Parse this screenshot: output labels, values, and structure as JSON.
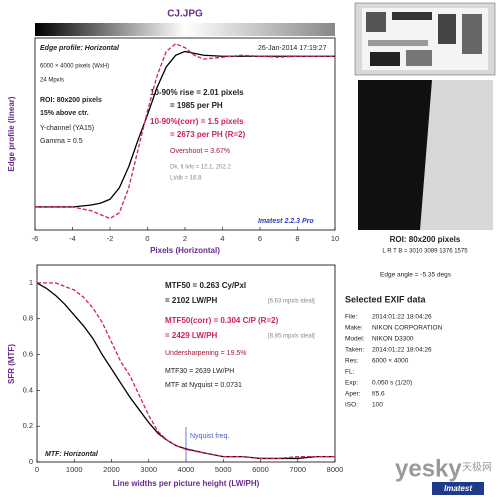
{
  "header": {
    "title": "CJ.JPG"
  },
  "chart_data": [
    {
      "type": "line",
      "title": "Edge profile: Horizontal",
      "xlabel": "Pixels (Horizontal)",
      "ylabel": "Edge profile (linear)",
      "xlim": [
        -6,
        10
      ],
      "xticks": [
        -6,
        -4,
        -2,
        0,
        2,
        4,
        6,
        8,
        10
      ],
      "ylim": [
        0,
        1
      ],
      "x": [
        -6,
        -5,
        -4,
        -3,
        -2.5,
        -2,
        -1.5,
        -1,
        -0.5,
        0,
        0.5,
        1,
        1.5,
        2,
        2.5,
        3,
        4,
        5,
        6,
        7,
        8,
        9,
        10
      ],
      "series": [
        {
          "color": "#000000",
          "style": "solid",
          "values": [
            0.12,
            0.12,
            0.12,
            0.13,
            0.14,
            0.16,
            0.22,
            0.33,
            0.47,
            0.6,
            0.74,
            0.85,
            0.91,
            0.93,
            0.92,
            0.91,
            0.905,
            0.905,
            0.905,
            0.905,
            0.905,
            0.905,
            0.905
          ]
        },
        {
          "color": "#d0215f",
          "style": "dashed",
          "values": [
            0.12,
            0.12,
            0.12,
            0.1,
            0.08,
            0.06,
            0.09,
            0.22,
            0.42,
            0.62,
            0.8,
            0.93,
            0.97,
            0.95,
            0.91,
            0.89,
            0.9,
            0.91,
            0.905,
            0.9,
            0.905,
            0.905,
            0.905
          ]
        }
      ],
      "annotations": [
        "26-Jan-2014 17:19:27",
        "6000 × 4000 pixels (WxH)",
        "24 Mpxls",
        "ROI: 80x200 pixels",
        "15% above ctr.",
        "Y-channel (YA15)",
        "Gamma = 0.5",
        "10-90% rise = 2.01 pixels",
        "= 1985 per PH",
        "10-90%(corr) = 1.5 pixels",
        "= 2673 per PH  (R=2)",
        "Overshoot = 3.67%",
        "Dk, lt lvls = 12.1, 202.2",
        "Lt/dk = 16.8",
        "Imatest 2.2.3 Pro"
      ]
    },
    {
      "type": "line",
      "title": "MTF: Horizontal",
      "xlabel": "Line widths per picture height (LW/PH)",
      "ylabel": "SFR (MTF)",
      "xlim": [
        0,
        8000
      ],
      "xticks": [
        0,
        1000,
        2000,
        3000,
        4000,
        5000,
        6000,
        7000,
        8000
      ],
      "ylim": [
        0,
        1.1
      ],
      "yticks": [
        0,
        0.2,
        0.4,
        0.6,
        0.8,
        1
      ],
      "x": [
        0,
        250,
        500,
        750,
        1000,
        1250,
        1500,
        1750,
        2000,
        2250,
        2500,
        2750,
        3000,
        3250,
        3500,
        3750,
        4000,
        4500,
        5000,
        5500,
        6000,
        6500,
        7000,
        7500,
        8000
      ],
      "series": [
        {
          "color": "#000000",
          "style": "solid",
          "values": [
            1,
            0.97,
            0.93,
            0.88,
            0.82,
            0.76,
            0.69,
            0.6,
            0.52,
            0.44,
            0.36,
            0.29,
            0.22,
            0.16,
            0.12,
            0.09,
            0.073,
            0.05,
            0.03,
            0.03,
            0.02,
            0.02,
            0.02,
            0.03,
            0.03
          ]
        },
        {
          "color": "#d0215f",
          "style": "dashed",
          "values": [
            1,
            1,
            1,
            0.98,
            0.96,
            0.92,
            0.86,
            0.78,
            0.67,
            0.56,
            0.48,
            0.37,
            0.26,
            0.17,
            0.12,
            0.09,
            0.07,
            0.05,
            0.03,
            0.03,
            0.02,
            0.02,
            0.03,
            0.03,
            0.03
          ]
        }
      ],
      "nyquist": {
        "label": "Nyquist freq.",
        "x": 4000,
        "color": "#4a5bd0"
      },
      "annotations": [
        "MTF50 = 0.263 Cy/Pxl",
        "= 2102 LW/PH",
        "[6.63 mpxls ideal]",
        "MTF50(corr) = 0.304 C/P  (R=2)",
        "= 2429 LW/PH",
        "[8.85 mpxls ideal]",
        "Undersharpening = 19.5%",
        "MTF30 = 2639 LW/PH",
        "MTF at Nyquist = 0.0731"
      ]
    }
  ],
  "roi_panel": {
    "caption": "ROI: 80x200 pixels",
    "coords": "L R T B = 3010 3089 1376 1575",
    "edge_angle": "Edge angle = -5.35 degs"
  },
  "exif": {
    "title": "Selected EXIF data",
    "rows": [
      [
        "File:",
        "2014:01:22 18:04:26"
      ],
      [
        "Make:",
        "NIKON CORPORATION"
      ],
      [
        "Model:",
        "NIKON D3300"
      ],
      [
        "Taken:",
        "2014:01:22 18:04:26"
      ],
      [
        "Res:",
        "6000 × 4000"
      ],
      [
        "FL:",
        ""
      ],
      [
        "Exp:",
        "0.050 s  (1/20)"
      ],
      [
        "Aper:",
        "f/5.6"
      ],
      [
        "ISO:",
        "100"
      ]
    ]
  },
  "watermark": {
    "site": "yesky",
    "cn": "天极网",
    "logo": "Imatest"
  }
}
